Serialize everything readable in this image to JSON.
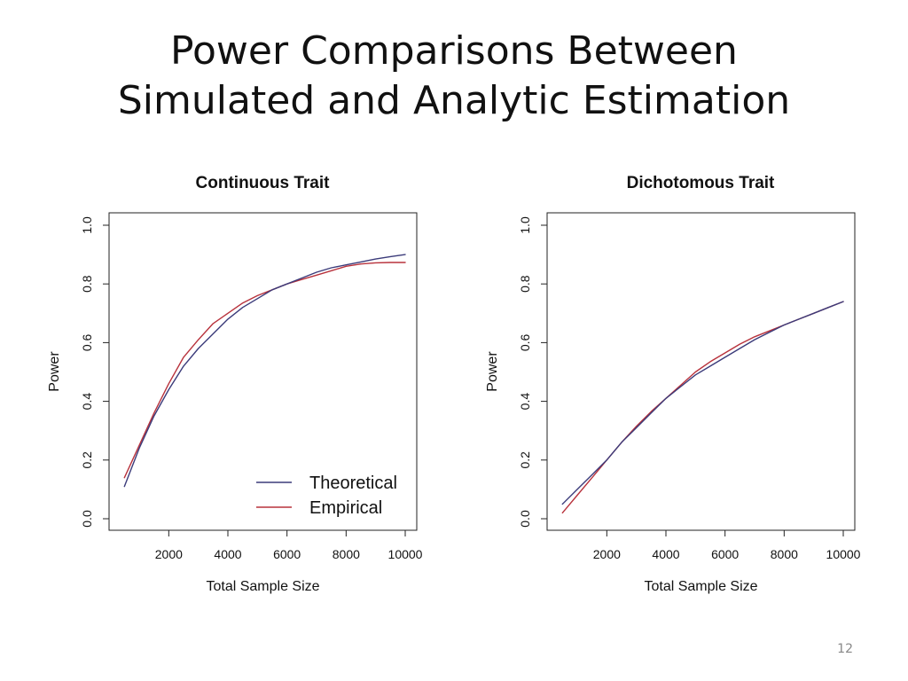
{
  "slide": {
    "title_line1": "Power Comparisons Between",
    "title_line2": "Simulated and Analytic Estimation",
    "page_number": "12"
  },
  "colors": {
    "theoretical": "#3b3b7a",
    "empirical": "#b8323c",
    "frame": "#222222"
  },
  "chart_data": [
    {
      "type": "line",
      "title": "Continuous Trait",
      "xlabel": "Total Sample Size",
      "ylabel": "Power",
      "xlim": [
        400,
        10000
      ],
      "ylim": [
        0.0,
        1.0
      ],
      "xticks": [
        2000,
        4000,
        6000,
        8000,
        10000
      ],
      "xtick_labels": [
        "2000",
        "4000",
        "6000",
        "8000",
        "10000"
      ],
      "yticks": [
        0.0,
        0.2,
        0.4,
        0.6,
        0.8,
        1.0
      ],
      "ytick_labels": [
        "0.0",
        "0.2",
        "0.4",
        "0.6",
        "0.8",
        "1.0"
      ],
      "legend": {
        "position": "bottom-right",
        "entries": [
          "Theoretical",
          "Empirical"
        ]
      },
      "series": [
        {
          "name": "Theoretical",
          "x": [
            500,
            1000,
            1500,
            2000,
            2500,
            3000,
            3500,
            4000,
            4500,
            5000,
            5500,
            6000,
            6500,
            7000,
            7500,
            8000,
            8500,
            9000,
            9500,
            10000
          ],
          "y": [
            0.11,
            0.24,
            0.35,
            0.44,
            0.52,
            0.58,
            0.63,
            0.68,
            0.72,
            0.75,
            0.78,
            0.8,
            0.82,
            0.84,
            0.855,
            0.865,
            0.875,
            0.885,
            0.893,
            0.9
          ]
        },
        {
          "name": "Empirical",
          "x": [
            500,
            1000,
            1500,
            2000,
            2500,
            3000,
            3500,
            4000,
            4500,
            5000,
            5500,
            6000,
            6500,
            7000,
            7500,
            8000,
            8500,
            9000,
            9500,
            10000
          ],
          "y": [
            0.14,
            0.25,
            0.36,
            0.46,
            0.55,
            0.61,
            0.665,
            0.7,
            0.735,
            0.76,
            0.78,
            0.8,
            0.815,
            0.83,
            0.845,
            0.86,
            0.868,
            0.872,
            0.873,
            0.873
          ]
        }
      ]
    },
    {
      "type": "line",
      "title": "Dichotomous Trait",
      "xlabel": "Total Sample Size",
      "ylabel": "Power",
      "xlim": [
        400,
        10000
      ],
      "ylim": [
        0.0,
        1.0
      ],
      "xticks": [
        2000,
        4000,
        6000,
        8000,
        10000
      ],
      "xtick_labels": [
        "2000",
        "4000",
        "6000",
        "8000",
        "10000"
      ],
      "yticks": [
        0.0,
        0.2,
        0.4,
        0.6,
        0.8,
        1.0
      ],
      "ytick_labels": [
        "0.0",
        "0.2",
        "0.4",
        "0.6",
        "0.8",
        "1.0"
      ],
      "series": [
        {
          "name": "Theoretical",
          "x": [
            500,
            1000,
            1500,
            2000,
            2500,
            3000,
            3500,
            4000,
            4500,
            5000,
            5500,
            6000,
            6500,
            7000,
            7500,
            8000,
            8500,
            9000,
            9500,
            10000
          ],
          "y": [
            0.05,
            0.1,
            0.15,
            0.2,
            0.26,
            0.31,
            0.36,
            0.41,
            0.45,
            0.49,
            0.52,
            0.55,
            0.58,
            0.61,
            0.635,
            0.66,
            0.68,
            0.7,
            0.72,
            0.74
          ]
        },
        {
          "name": "Empirical",
          "x": [
            500,
            1000,
            1500,
            2000,
            2500,
            3000,
            3500,
            4000,
            4500,
            5000,
            5500,
            6000,
            6500,
            7000,
            7500,
            8000,
            8500,
            9000,
            9500,
            10000
          ],
          "y": [
            0.02,
            0.08,
            0.14,
            0.2,
            0.26,
            0.315,
            0.365,
            0.41,
            0.455,
            0.5,
            0.535,
            0.565,
            0.595,
            0.62,
            0.64,
            0.66,
            0.68,
            0.7,
            0.72,
            0.74
          ]
        }
      ]
    }
  ]
}
